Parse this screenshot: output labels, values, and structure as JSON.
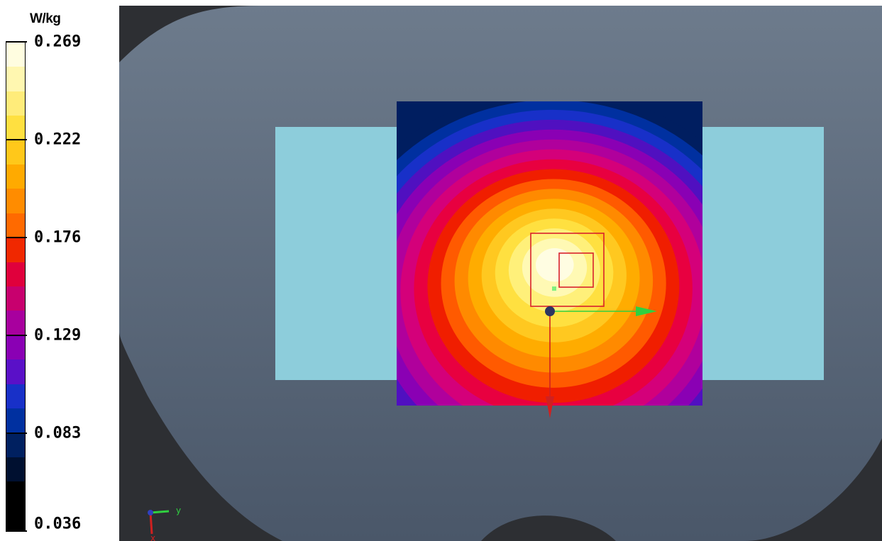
{
  "legend": {
    "unit": "W/kg",
    "ticks": [
      "0.269",
      "0.222",
      "0.176",
      "0.129",
      "0.083",
      "0.036"
    ],
    "segment_colors": [
      "#fffde0",
      "#fff7b0",
      "#ffec7a",
      "#ffe040",
      "#ffc81a",
      "#ffaa00",
      "#ff8c00",
      "#ff6a00",
      "#f02800",
      "#e0003c",
      "#c8006e",
      "#a8009e",
      "#8a00b4",
      "#5a10c8",
      "#1830c8",
      "#0030a0",
      "#002060",
      "#001030",
      "#000000",
      "#000000"
    ],
    "tick_segments": [
      0,
      4,
      8,
      12,
      16,
      20
    ]
  },
  "viewport": {
    "axis_triad": {
      "y_label": "y",
      "x_label": "x"
    },
    "colors": {
      "phantom": "#58677a",
      "background": "#2d2f33",
      "flat_region": "#8dcddb",
      "inner_cube": "#d8202c",
      "x_axis": "#d02020",
      "y_axis": "#30d040",
      "origin": "#2d3560"
    },
    "sar_colormap": [
      "#000000",
      "#001030",
      "#001e60",
      "#0030a0",
      "#1830c8",
      "#5010c0",
      "#8a00b4",
      "#b0009c",
      "#d4007a",
      "#e80040",
      "#f01e00",
      "#ff5a00",
      "#ff8a00",
      "#ffac00",
      "#ffc820",
      "#ffe040",
      "#fff07a",
      "#fff9b4",
      "#fffde2"
    ]
  }
}
